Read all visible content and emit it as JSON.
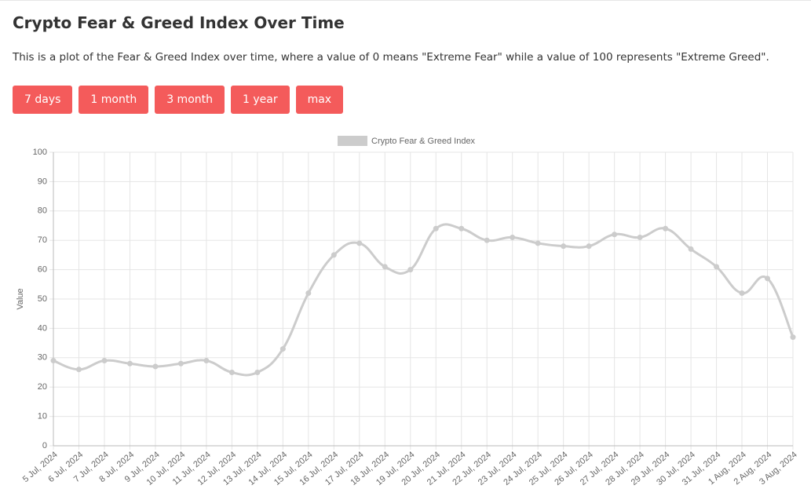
{
  "page": {
    "title": "Crypto Fear & Greed Index Over Time",
    "description": "This is a plot of the Fear & Greed Index over time, where a value of 0 means \"Extreme Fear\" while a value of 100 represents \"Extreme Greed\".",
    "buttons": [
      "7 days",
      "1 month",
      "3 month",
      "1 year",
      "max"
    ]
  },
  "chart_data": {
    "type": "line",
    "categories": [
      "5 Jul, 2024",
      "6 Jul, 2024",
      "7 Jul, 2024",
      "8 Jul, 2024",
      "9 Jul, 2024",
      "10 Jul, 2024",
      "11 Jul, 2024",
      "12 Jul, 2024",
      "13 Jul, 2024",
      "14 Jul, 2024",
      "15 Jul, 2024",
      "16 Jul, 2024",
      "17 Jul, 2024",
      "18 Jul, 2024",
      "19 Jul, 2024",
      "20 Jul, 2024",
      "21 Jul, 2024",
      "22 Jul, 2024",
      "23 Jul, 2024",
      "24 Jul, 2024",
      "25 Jul, 2024",
      "26 Jul, 2024",
      "27 Jul, 2024",
      "28 Jul, 2024",
      "29 Jul, 2024",
      "30 Jul, 2024",
      "31 Jul, 2024",
      "1 Aug, 2024",
      "2 Aug, 2024",
      "3 Aug, 2024"
    ],
    "series": [
      {
        "name": "Crypto Fear & Greed Index",
        "color": "#cccccc",
        "values": [
          29,
          26,
          29,
          28,
          27,
          28,
          29,
          25,
          25,
          33,
          52,
          65,
          69,
          61,
          60,
          74,
          74,
          70,
          71,
          69,
          68,
          68,
          72,
          71,
          74,
          67,
          61,
          52,
          57,
          37
        ]
      }
    ],
    "ylabel": "Value",
    "ylim": [
      0,
      100
    ],
    "yticks": [
      0,
      10,
      20,
      30,
      40,
      50,
      60,
      70,
      80,
      90,
      100
    ],
    "grid": true,
    "legend": "top"
  }
}
